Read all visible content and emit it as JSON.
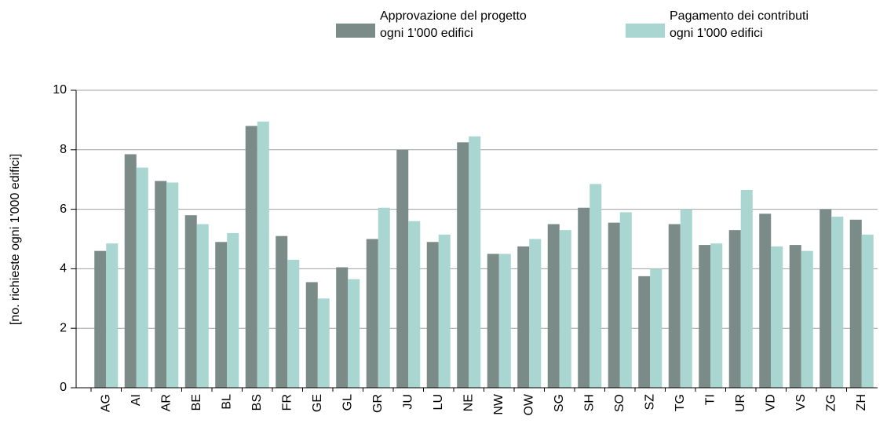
{
  "chart_data": {
    "type": "bar",
    "y_label": "[no. richieste ogni 1'000 edifici]",
    "categories": [
      "AG",
      "AI",
      "AR",
      "BE",
      "BL",
      "BS",
      "FR",
      "GE",
      "GL",
      "GR",
      "JU",
      "LU",
      "NE",
      "NW",
      "OW",
      "SG",
      "SH",
      "SO",
      "SZ",
      "TG",
      "TI",
      "UR",
      "VD",
      "VS",
      "ZG",
      "ZH"
    ],
    "series": [
      {
        "name": "Approvazione del progetto\nogni 1'000 edifici",
        "color": "#7b8b88",
        "values": [
          4.6,
          7.85,
          6.95,
          5.8,
          4.9,
          8.8,
          5.1,
          3.55,
          4.05,
          5.0,
          8.0,
          4.9,
          8.25,
          4.5,
          4.75,
          5.5,
          6.05,
          5.55,
          3.75,
          5.5,
          4.8,
          5.3,
          5.85,
          4.8,
          6.0,
          5.65
        ]
      },
      {
        "name": "Pagamento dei contributi\nogni 1'000 edifici",
        "color": "#a9d6d1",
        "values": [
          4.85,
          7.4,
          6.9,
          5.5,
          5.2,
          8.95,
          4.3,
          3.0,
          3.65,
          6.05,
          5.6,
          5.15,
          8.45,
          4.5,
          5.0,
          5.3,
          6.85,
          5.9,
          4.0,
          6.0,
          4.85,
          6.65,
          4.75,
          4.6,
          5.75,
          5.15
        ]
      }
    ],
    "ylim": [
      0,
      10
    ],
    "yticks": [
      0,
      2,
      4,
      6,
      8,
      10
    ],
    "grid": true
  }
}
